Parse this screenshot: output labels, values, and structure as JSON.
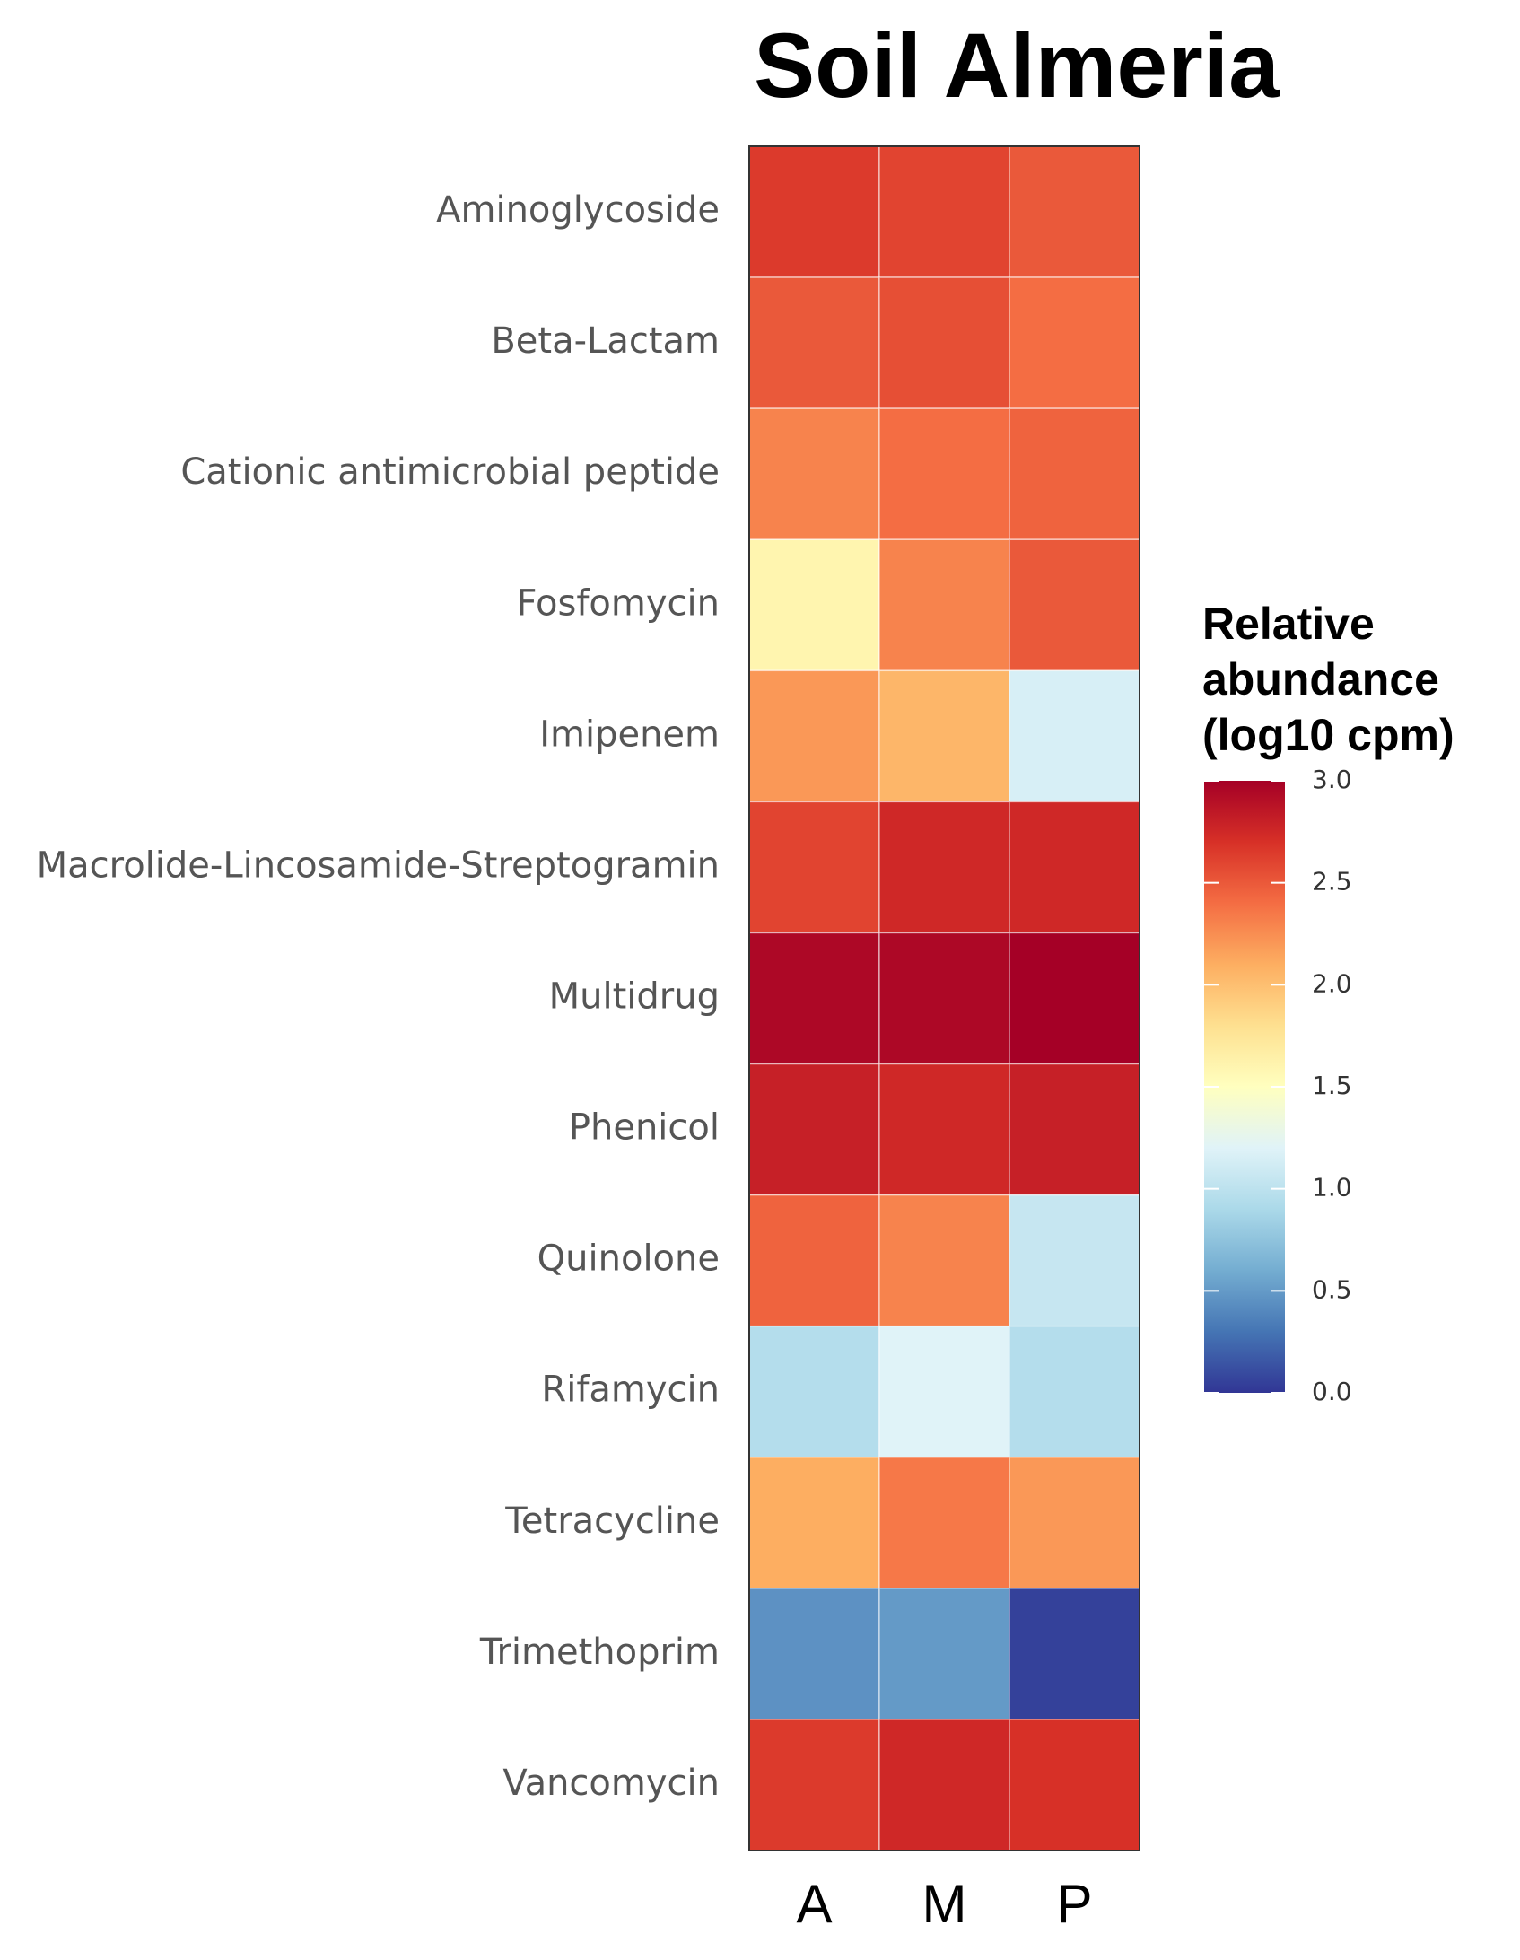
{
  "chart_data": {
    "type": "heatmap",
    "title": "Soil Almeria",
    "rows": [
      "Aminoglycoside",
      "Beta-Lactam",
      "Cationic antimicrobial peptide",
      "Fosfomycin",
      "Imipenem",
      "Macrolide-Lincosamide-Streptogramin",
      "Multidrug",
      "Phenicol",
      "Quinolone",
      "Rifamycin",
      "Tetracycline",
      "Trimethoprim",
      "Vancomycin"
    ],
    "columns": [
      "A",
      "M",
      "P"
    ],
    "values": [
      [
        2.65,
        2.6,
        2.5
      ],
      [
        2.5,
        2.55,
        2.4
      ],
      [
        2.3,
        2.4,
        2.45
      ],
      [
        1.6,
        2.3,
        2.5
      ],
      [
        2.2,
        2.05,
        1.15
      ],
      [
        2.6,
        2.75,
        2.75
      ],
      [
        2.95,
        2.95,
        3.0
      ],
      [
        2.8,
        2.75,
        2.8
      ],
      [
        2.45,
        2.3,
        1.05
      ],
      [
        0.95,
        1.2,
        0.95
      ],
      [
        2.1,
        2.35,
        2.2
      ],
      [
        0.45,
        0.5,
        0.05
      ],
      [
        2.65,
        2.75,
        2.7
      ]
    ],
    "legend": {
      "title_lines": [
        "Relative",
        "abundance",
        "(log10 cpm)"
      ],
      "min": 0.0,
      "max": 3.0,
      "ticks": [
        "0.0",
        "0.5",
        "1.0",
        "1.5",
        "2.0",
        "2.5",
        "3.0"
      ],
      "palette": [
        "#313695",
        "#4575b4",
        "#74add1",
        "#abd9e9",
        "#e0f3f8",
        "#ffffbf",
        "#fee090",
        "#fdae61",
        "#f46d43",
        "#d73027",
        "#a50026"
      ]
    }
  }
}
